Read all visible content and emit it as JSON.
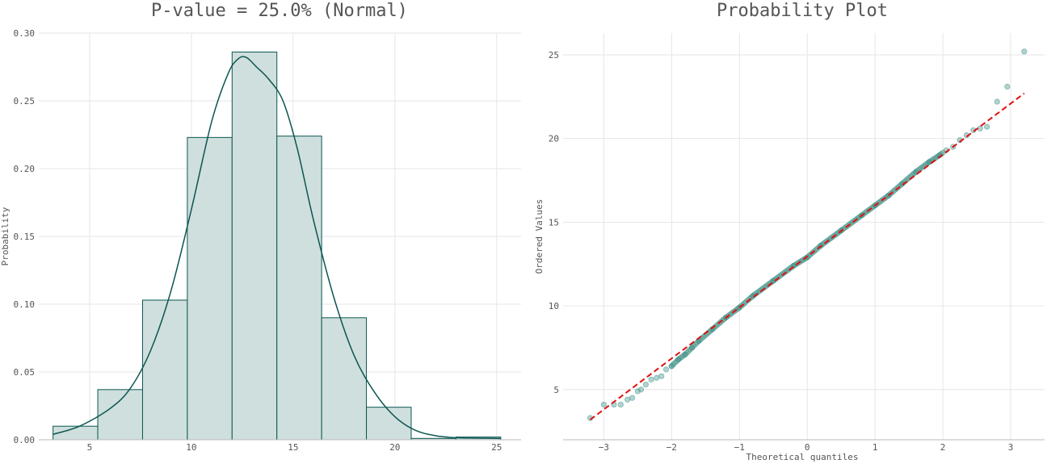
{
  "colors": {
    "bar_fill": "#cfdfdd",
    "edge": "#0b5650",
    "points": "#3d8f85",
    "fit_line": "#e01010"
  },
  "chart_data": [
    {
      "type": "histogram",
      "title": "P-value = 25.0% (Normal)",
      "xlabel": "",
      "ylabel": "Probability",
      "xlim": [
        2.5,
        26.2
      ],
      "ylim": [
        0.0,
        0.3
      ],
      "xticks": [
        5,
        10,
        15,
        20,
        25
      ],
      "yticks": [
        0.0,
        0.05,
        0.1,
        0.15,
        0.2,
        0.25,
        0.3
      ],
      "ytick_labels": [
        "0.00",
        "0.05",
        "0.10",
        "0.15",
        "0.20",
        "0.25",
        "0.30"
      ],
      "bin_edges": [
        3.2,
        5.4,
        7.6,
        9.8,
        12.0,
        14.2,
        16.4,
        18.6,
        20.8,
        23.0,
        25.2
      ],
      "values": [
        0.01,
        0.037,
        0.103,
        0.223,
        0.286,
        0.224,
        0.09,
        0.024,
        0.001,
        0.002
      ],
      "kde": {
        "x": [
          3.2,
          4.5,
          6.0,
          7.0,
          8.0,
          9.0,
          10.0,
          11.0,
          11.8,
          12.3,
          12.7,
          13.2,
          13.8,
          14.5,
          15.2,
          16.0,
          17.0,
          18.0,
          19.0,
          20.0,
          21.0,
          22.0,
          23.0,
          24.0,
          25.2
        ],
        "y": [
          0.004,
          0.01,
          0.023,
          0.038,
          0.066,
          0.11,
          0.17,
          0.235,
          0.27,
          0.281,
          0.282,
          0.275,
          0.266,
          0.25,
          0.215,
          0.162,
          0.105,
          0.062,
          0.035,
          0.017,
          0.007,
          0.003,
          0.0015,
          0.0012,
          0.001
        ]
      }
    },
    {
      "type": "scatter",
      "title": "Probability Plot",
      "xlabel": "Theoretical quantiles",
      "ylabel": "Ordered Values",
      "xlim": [
        -3.6,
        3.5
      ],
      "ylim": [
        2.0,
        26.3
      ],
      "xticks": [
        -3,
        -2,
        -1,
        0,
        1,
        2,
        3
      ],
      "yticks": [
        5,
        10,
        15,
        20,
        25
      ],
      "fit_line": {
        "x": [
          -3.2,
          3.2
        ],
        "y": [
          3.2,
          22.7
        ]
      },
      "points_sample": [
        [
          -3.2,
          3.3
        ],
        [
          -3.0,
          4.1
        ],
        [
          -2.85,
          4.1
        ],
        [
          -2.75,
          4.1
        ],
        [
          -2.65,
          4.4
        ],
        [
          -2.58,
          4.5
        ],
        [
          -2.5,
          4.9
        ],
        [
          -2.45,
          5.0
        ],
        [
          -2.38,
          5.3
        ],
        [
          -2.3,
          5.6
        ],
        [
          -2.22,
          5.7
        ],
        [
          -2.15,
          5.8
        ],
        [
          -2.08,
          6.2
        ],
        [
          -2.0,
          6.4
        ],
        [
          -1.9,
          6.8
        ],
        [
          -1.8,
          7.1
        ],
        [
          -1.7,
          7.5
        ],
        [
          -1.6,
          7.9
        ],
        [
          -1.4,
          8.6
        ],
        [
          -1.2,
          9.3
        ],
        [
          -1.0,
          9.9
        ],
        [
          -0.8,
          10.6
        ],
        [
          -0.5,
          11.5
        ],
        [
          -0.2,
          12.4
        ],
        [
          0.0,
          12.9
        ],
        [
          0.2,
          13.6
        ],
        [
          0.5,
          14.5
        ],
        [
          0.8,
          15.4
        ],
        [
          1.0,
          16.0
        ],
        [
          1.2,
          16.6
        ],
        [
          1.4,
          17.3
        ],
        [
          1.6,
          18.0
        ],
        [
          1.8,
          18.6
        ],
        [
          1.95,
          19.0
        ],
        [
          2.05,
          19.3
        ],
        [
          2.15,
          19.5
        ],
        [
          2.25,
          19.9
        ],
        [
          2.35,
          20.2
        ],
        [
          2.45,
          20.5
        ],
        [
          2.55,
          20.6
        ],
        [
          2.65,
          20.7
        ],
        [
          2.8,
          22.2
        ],
        [
          2.95,
          23.1
        ],
        [
          3.2,
          25.2
        ]
      ]
    }
  ]
}
